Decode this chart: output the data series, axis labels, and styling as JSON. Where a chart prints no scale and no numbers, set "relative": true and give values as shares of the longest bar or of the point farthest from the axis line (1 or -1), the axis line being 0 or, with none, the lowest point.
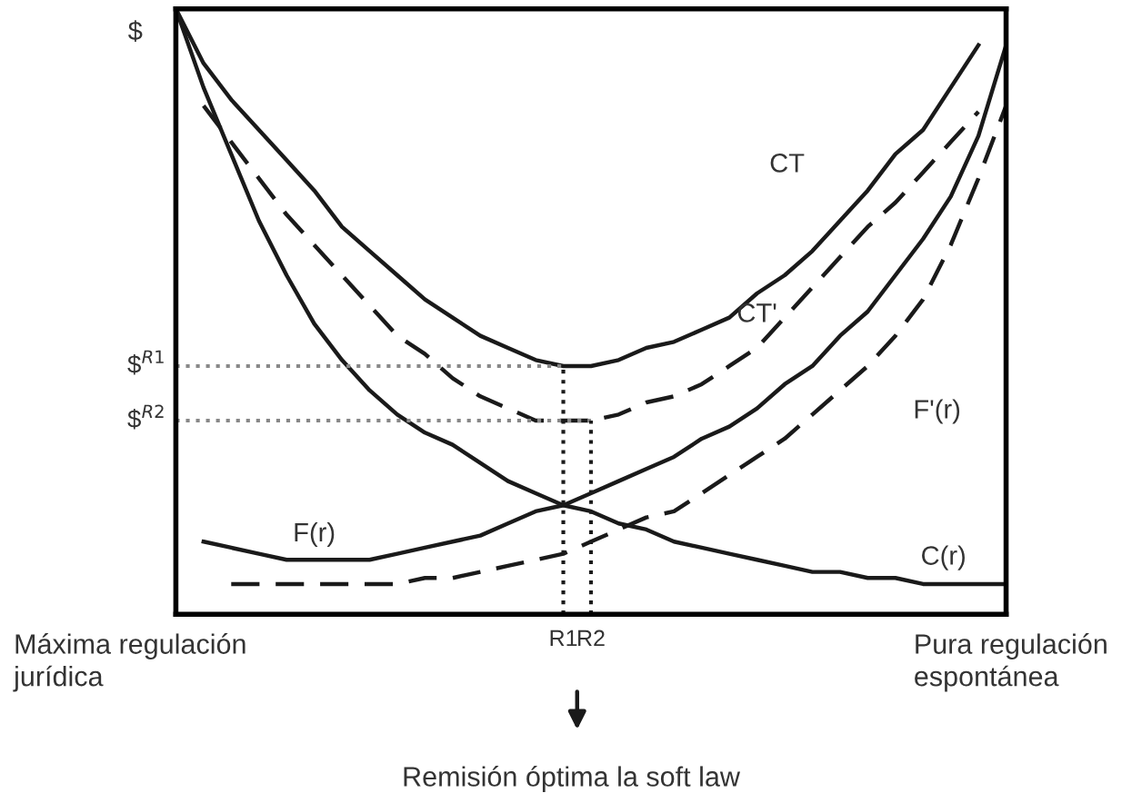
{
  "chart_data": {
    "type": "line",
    "relative": true,
    "ylabel": "$",
    "legend": false,
    "categories": [
      null,
      null,
      null,
      null,
      null,
      null,
      null,
      null,
      null,
      null,
      null,
      null,
      null,
      null,
      "R1",
      "R2",
      null,
      null,
      null,
      null,
      null,
      null,
      null,
      null,
      null,
      null,
      null,
      null,
      null,
      null,
      null
    ],
    "series": [
      {
        "name": "CT",
        "color": "#1a1a1a",
        "line_style": "solid",
        "values": [
          1.0,
          0.91,
          0.85,
          0.8,
          0.75,
          0.7,
          0.64,
          0.6,
          0.56,
          0.52,
          0.49,
          0.46,
          0.44,
          0.42,
          0.41,
          0.41,
          0.42,
          0.44,
          0.45,
          0.47,
          0.49,
          0.53,
          0.56,
          0.6,
          0.65,
          0.7,
          0.76,
          0.8,
          0.87,
          0.94,
          null
        ]
      },
      {
        "name": "CT'",
        "color": "#1a1a1a",
        "line_style": "dashed",
        "values": [
          null,
          0.84,
          0.78,
          0.72,
          0.66,
          0.61,
          0.56,
          0.51,
          0.46,
          0.43,
          0.39,
          0.36,
          0.34,
          0.32,
          0.32,
          0.32,
          0.33,
          0.35,
          0.36,
          0.38,
          0.41,
          0.44,
          0.49,
          0.54,
          0.59,
          0.64,
          0.68,
          0.73,
          0.78,
          0.83,
          null
        ]
      },
      {
        "name": "F'(r)",
        "color": "#1a1a1a",
        "line_style": "dashed",
        "values": [
          null,
          null,
          0.05,
          0.05,
          0.05,
          0.05,
          0.05,
          0.05,
          0.05,
          0.06,
          0.06,
          0.07,
          0.08,
          0.09,
          0.1,
          0.12,
          0.14,
          0.16,
          0.17,
          0.2,
          0.23,
          0.26,
          0.29,
          0.33,
          0.37,
          0.41,
          0.46,
          0.52,
          0.61,
          0.72,
          0.84
        ]
      },
      {
        "name": "C(r)",
        "color": "#1a1a1a",
        "line_style": "solid",
        "values": [
          1.0,
          0.87,
          0.76,
          0.65,
          0.56,
          0.48,
          0.42,
          0.37,
          0.33,
          0.3,
          0.28,
          0.25,
          0.22,
          0.2,
          0.18,
          0.17,
          0.15,
          0.14,
          0.12,
          0.11,
          0.1,
          0.09,
          0.08,
          0.07,
          0.07,
          0.06,
          0.06,
          0.05,
          0.05,
          0.05,
          0.05
        ]
      },
      {
        "name": "F(r)",
        "color": "#1a1a1a",
        "line_style": "solid",
        "values": [
          null,
          0.12,
          0.11,
          0.1,
          0.09,
          0.09,
          0.09,
          0.09,
          0.1,
          0.11,
          0.12,
          0.13,
          0.15,
          0.17,
          0.18,
          0.2,
          0.22,
          0.24,
          0.26,
          0.29,
          0.31,
          0.34,
          0.38,
          0.41,
          0.46,
          0.5,
          0.56,
          0.62,
          0.69,
          0.79,
          0.94
        ]
      }
    ],
    "ref_lines": [
      {
        "axis": "y",
        "value": 0.41,
        "label": "$$^{R1}$",
        "color": "#888888",
        "line_style": "dotted"
      },
      {
        "axis": "y",
        "value": 0.32,
        "label": "$$^{R2}$",
        "color": "#888888",
        "line_style": "dotted"
      },
      {
        "axis": "x",
        "value": "R1",
        "color": "#1a1a1a",
        "line_style": "dotted"
      },
      {
        "axis": "x",
        "value": "R2",
        "color": "#1a1a1a",
        "line_style": "dotted"
      }
    ],
    "annotations": [
      "Máxima regulación\njurídica",
      "Pura regulación\nespontánea",
      "Remisión óptima la soft law"
    ]
  }
}
